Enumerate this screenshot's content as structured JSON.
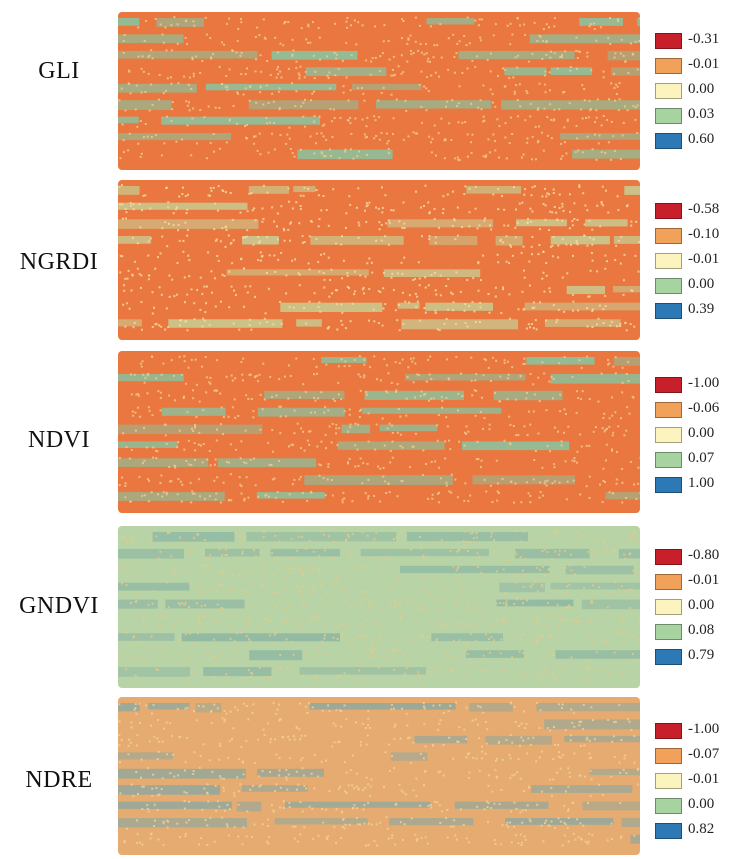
{
  "legend_colors": [
    "#c8202a",
    "#f2a15b",
    "#fbf4bf",
    "#a7d3a1",
    "#2c79b5"
  ],
  "panels": [
    {
      "label": "GLI",
      "values": [
        "-0.31",
        "-0.01",
        "0.00",
        "0.03",
        "0.60"
      ],
      "base_color": "#e9773f",
      "stripe_color": "#8fbf9a",
      "dot_color": "#f0c98e"
    },
    {
      "label": "NGRDI",
      "values": [
        "-0.58",
        "-0.10",
        "-0.01",
        "0.00",
        "0.39"
      ],
      "base_color": "#e9773f",
      "stripe_color": "#c9c98f",
      "dot_color": "#f3d9a3"
    },
    {
      "label": "NDVI",
      "values": [
        "-1.00",
        "-0.06",
        "0.00",
        "0.07",
        "1.00"
      ],
      "base_color": "#e9773f",
      "stripe_color": "#8fbf9a",
      "dot_color": "#f0c98e"
    },
    {
      "label": "GNDVI",
      "values": [
        "-0.80",
        "-0.01",
        "0.00",
        "0.08",
        "0.79"
      ],
      "base_color": "#b8d3a6",
      "stripe_color": "#8fb8a4",
      "dot_color": "#e6c988"
    },
    {
      "label": "NDRE",
      "values": [
        "-1.00",
        "-0.07",
        "-0.01",
        "0.00",
        "0.82"
      ],
      "base_color": "#e6ab70",
      "stripe_color": "#98a89a",
      "dot_color": "#f1cf96"
    }
  ]
}
